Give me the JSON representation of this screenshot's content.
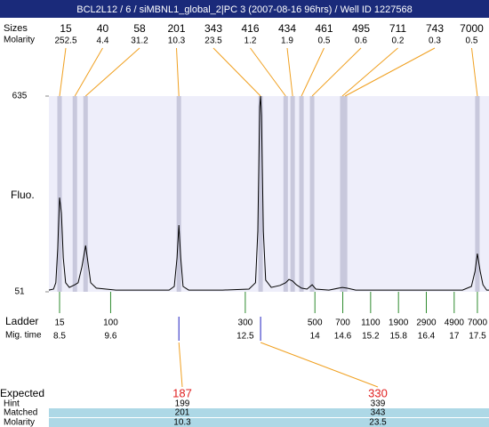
{
  "chart_data": {
    "type": "electropherogram",
    "title": "BCL2L12 / 6 / siMBNL1_global_2|PC 3 (2007-08-16 96hrs) / Well ID 1227568",
    "peaks": {
      "size_label": "Sizes",
      "molarity_label": "Molarity",
      "sizes": [
        15,
        40,
        58,
        201,
        343,
        416,
        434,
        461,
        495,
        711,
        743,
        7000
      ],
      "molarity": [
        252.5,
        4.4,
        31.2,
        10.3,
        23.5,
        1.2,
        1.9,
        0.5,
        0.6,
        0.2,
        0.3,
        0.5
      ],
      "x": [
        8.5,
        8.83,
        9.06,
        11.07,
        12.83,
        13.37,
        13.52,
        13.71,
        13.94,
        14.59,
        14.65,
        17.5
      ],
      "color": "#f0a020",
      "band_color": "#c8c8dc"
    },
    "ylabel": "Fluo.",
    "ylim": [
      51,
      635
    ],
    "yticks": [
      51,
      635
    ],
    "xlim": [
      8.27,
      17.75
    ],
    "plot_color": "#eeeefa",
    "ladder": {
      "label": "Ladder",
      "time_label": "Mig. time",
      "sizes": [
        15,
        100,
        300,
        500,
        700,
        1100,
        1900,
        2900,
        4900,
        7000
      ],
      "times": [
        8.5,
        9.6,
        12.5,
        14,
        14.6,
        15.2,
        15.8,
        16.4,
        17,
        17.5
      ],
      "color": "#2e8b2e"
    },
    "trace": {
      "x": [
        8.27,
        8.37,
        8.42,
        8.46,
        8.5,
        8.54,
        8.58,
        8.63,
        8.71,
        8.83,
        8.9,
        8.98,
        9.06,
        9.11,
        9.17,
        9.29,
        9.71,
        10.28,
        10.86,
        10.97,
        11.03,
        11.07,
        11.11,
        11.16,
        11.28,
        12.01,
        12.58,
        12.72,
        12.77,
        12.81,
        12.83,
        12.85,
        12.89,
        12.94,
        13.06,
        13.25,
        13.37,
        13.44,
        13.52,
        13.6,
        13.71,
        13.83,
        13.94,
        14.02,
        14.3,
        14.59,
        14.69,
        14.88,
        15.84,
        17.18,
        17.37,
        17.45,
        17.5,
        17.56,
        17.62,
        17.7,
        17.75
      ],
      "values": [
        56,
        59,
        78,
        178,
        332,
        285,
        152,
        78,
        64,
        72,
        78,
        125,
        189,
        139,
        78,
        62,
        56,
        56,
        56,
        67,
        152,
        250,
        152,
        67,
        56,
        56,
        59,
        78,
        232,
        603,
        635,
        577,
        232,
        86,
        64,
        70,
        78,
        88,
        83,
        72,
        62,
        59,
        72,
        59,
        56,
        64,
        62,
        56,
        56,
        56,
        67,
        112,
        165,
        112,
        72,
        56,
        56
      ],
      "color": "#000000"
    },
    "expected": {
      "labels": [
        "Expected",
        "Hint",
        "Matched",
        "Molarity"
      ],
      "x": [
        11.07,
        12.83
      ],
      "expected": [
        187,
        330
      ],
      "hint": [
        199,
        339
      ],
      "matched": [
        201,
        343
      ],
      "molarity": [
        10.3,
        23.5
      ],
      "expected_color": "#e02020",
      "row_color": "#add8e6",
      "tick_color": "#2020c0"
    }
  }
}
